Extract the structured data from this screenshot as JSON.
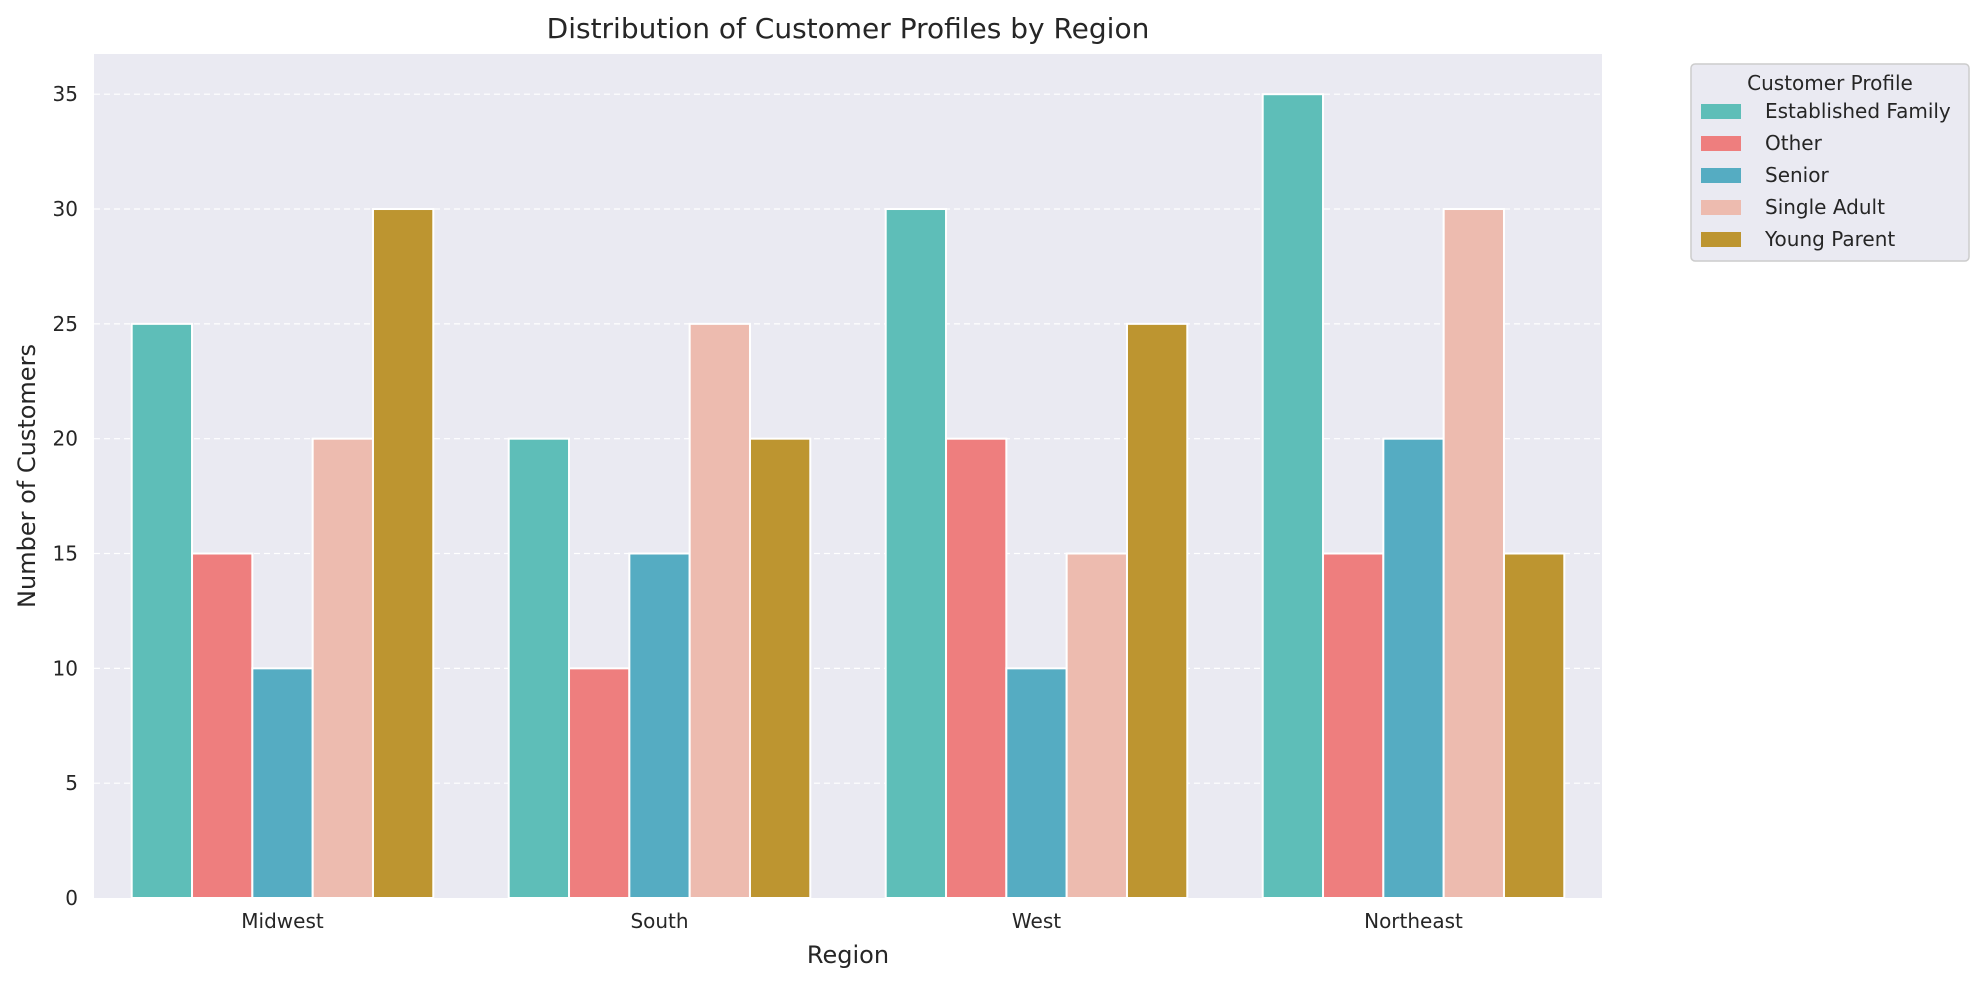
{
  "chart_data": {
    "type": "bar",
    "title": "Distribution of Customer Profiles by Region",
    "xlabel": "Region",
    "ylabel": "Number of Customers",
    "categories": [
      "Midwest",
      "South",
      "West",
      "Northeast"
    ],
    "ylim": [
      0,
      36.75
    ],
    "yticks": [
      "0",
      "5",
      "10",
      "15",
      "20",
      "25",
      "30",
      "35"
    ],
    "grid": true,
    "legend": {
      "title": "Customer Profile",
      "placement": "outside-top-right"
    },
    "series": [
      {
        "name": "Established Family",
        "color": "#5EBEB8",
        "values": [
          25,
          20,
          30,
          35
        ]
      },
      {
        "name": "Other",
        "color": "#EE7E7E",
        "values": [
          15,
          10,
          20,
          15
        ]
      },
      {
        "name": "Senior",
        "color": "#55ACC2",
        "values": [
          10,
          15,
          10,
          20
        ]
      },
      {
        "name": "Single Adult",
        "color": "#EDBBAF",
        "values": [
          20,
          25,
          15,
          30
        ]
      },
      {
        "name": "Young Parent",
        "color": "#BD9530",
        "values": [
          30,
          20,
          25,
          15
        ]
      }
    ],
    "colors": {
      "plot_background": "#EAEAF2",
      "grid": "#ffffff",
      "text": "#262626"
    }
  }
}
